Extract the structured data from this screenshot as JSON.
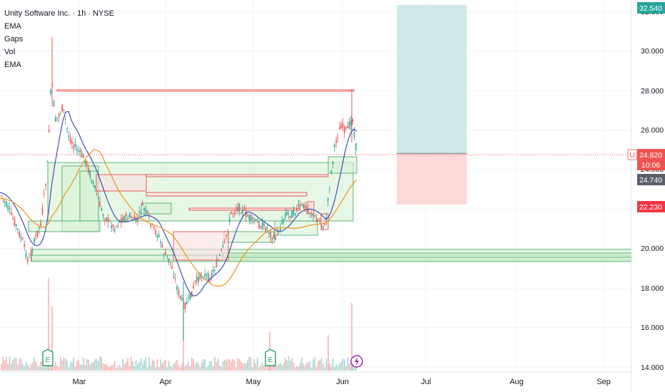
{
  "header": {
    "symbol_line": "Unity Software Inc. · 1h · NYSE",
    "indicators": [
      "EMA",
      "Gaps",
      "Vol",
      "EMA"
    ]
  },
  "badges": {
    "symbol_flag": "U",
    "last_price": "24.820",
    "countdown": "10:06",
    "prev_price": "24.740",
    "target_price": "32.540",
    "stop_price": "22.230"
  },
  "colors": {
    "up": "#26a69a",
    "down": "#ef5350",
    "ema_fast": "#3f51b5",
    "ema_slow": "#f0931e",
    "gap_up_fill": "#d7f2d4",
    "gap_up_stroke": "#3aa35a",
    "gap_down_fill": "#fbe0e3",
    "gap_down_stroke": "#e53935",
    "target_zone": "#cdeae8",
    "stop_zone": "#fbdad9",
    "event_e": "#2e9e6e",
    "event_flash": "#9c27b0"
  },
  "chart_data": {
    "type": "candlestick",
    "title": "Unity Software Inc. · 1h · NYSE",
    "ylim": [
      13.8,
      32.9
    ],
    "y_ticks": [
      14,
      16,
      18,
      20,
      22,
      24,
      26,
      28,
      30,
      32
    ],
    "y_tick_labels": [
      "14.000",
      "16.000",
      "18.000",
      "20.000",
      "22.000",
      "24.000",
      "26.000",
      "28.000",
      "30.000",
      "32.000"
    ],
    "x_tick_labels": [
      "Mar",
      "Apr",
      "May",
      "Jun",
      "Jul",
      "Aug",
      "Sep"
    ],
    "price_anchors": [
      {
        "t": 0,
        "p": 22.3
      },
      {
        "t": 0.05,
        "p": 21.2
      },
      {
        "t": 0.1,
        "p": 19.6
      },
      {
        "t": 0.16,
        "p": 21.1
      },
      {
        "t": 0.22,
        "p": 21.9
      },
      {
        "t": 0.3,
        "p": 27.3
      },
      {
        "t": 0.36,
        "p": 26.2
      },
      {
        "t": 0.45,
        "p": 24.5
      },
      {
        "t": 0.52,
        "p": 23.9
      },
      {
        "t": 0.6,
        "p": 22.6
      },
      {
        "t": 0.66,
        "p": 21.0
      },
      {
        "t": 0.74,
        "p": 21.7
      },
      {
        "t": 0.82,
        "p": 21.4
      },
      {
        "t": 0.88,
        "p": 21.0
      },
      {
        "t": 0.94,
        "p": 20.5
      },
      {
        "t": 1.0,
        "p": 21.4
      }
    ],
    "key_levels": [
      {
        "name": "last",
        "price": 24.82
      },
      {
        "name": "target",
        "price": 32.54
      },
      {
        "name": "stop",
        "price": 22.23
      }
    ]
  }
}
